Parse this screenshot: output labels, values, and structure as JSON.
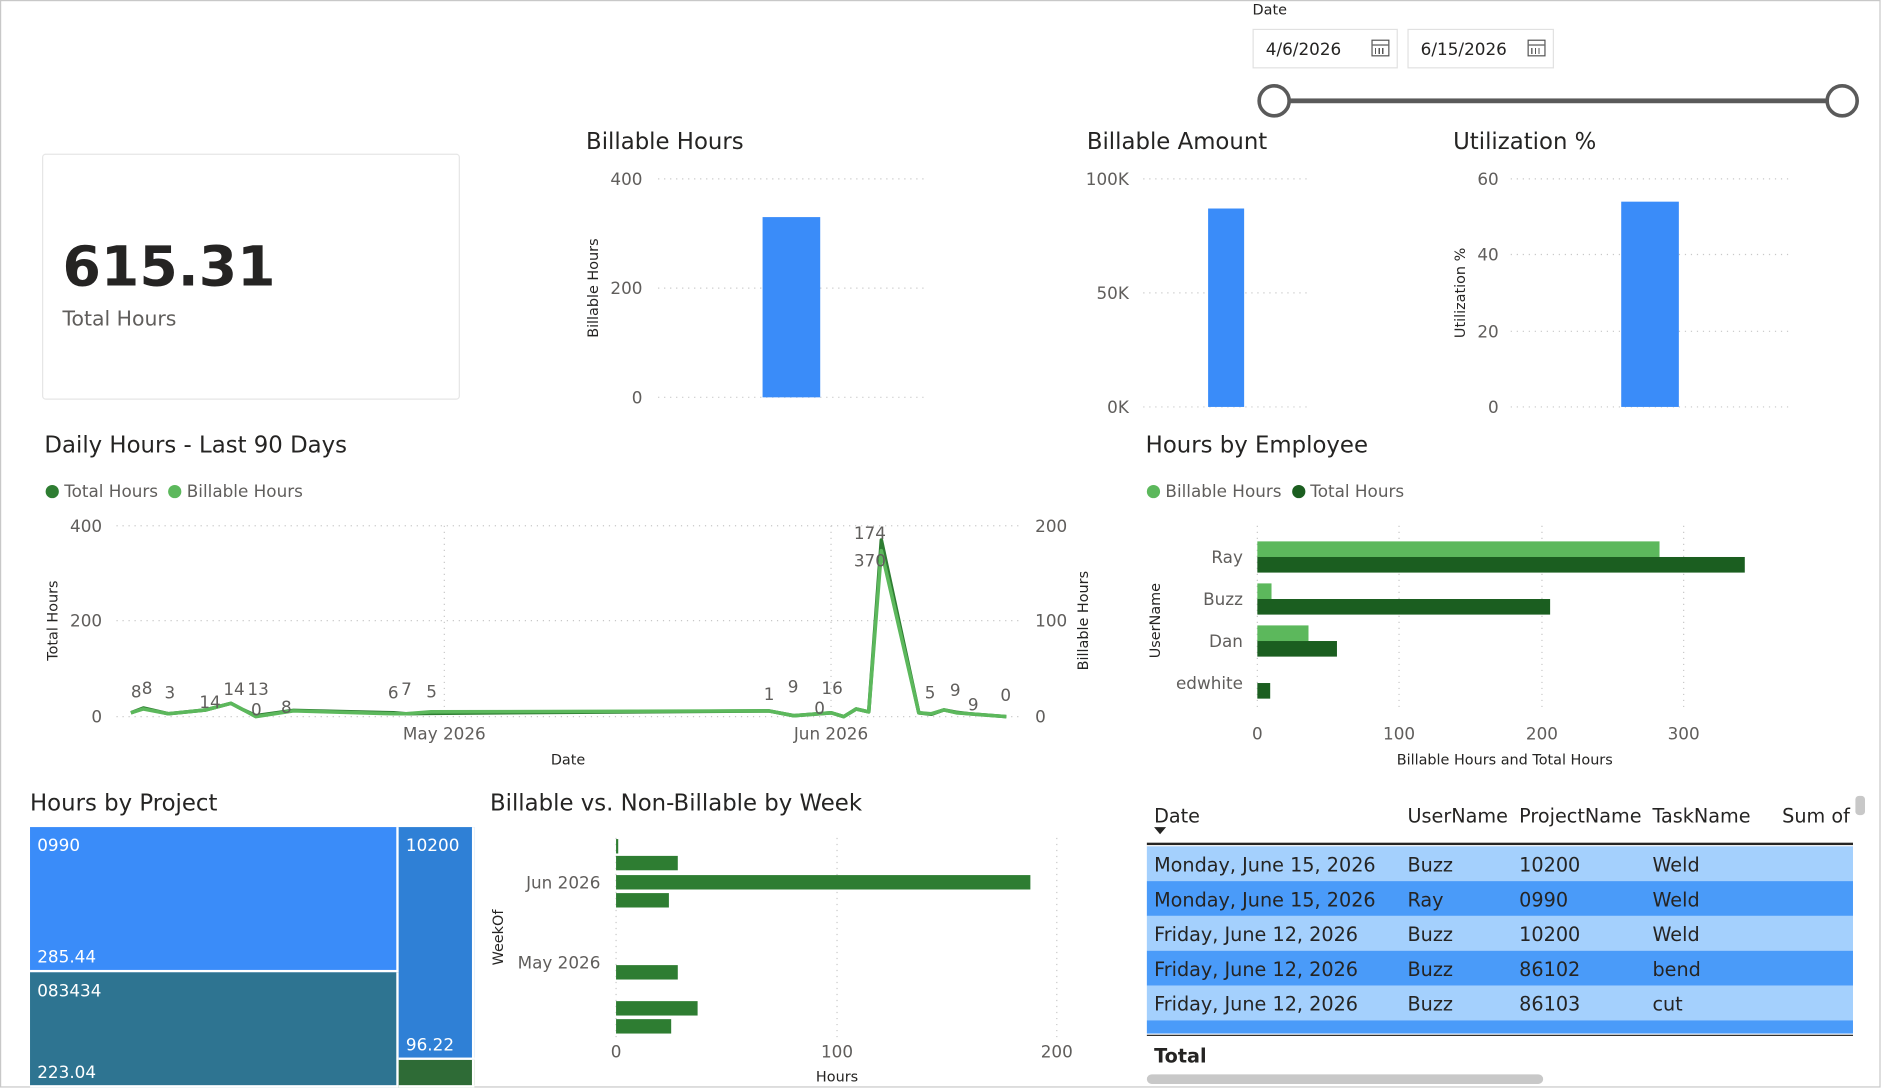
{
  "date_slicer": {
    "label": "Date",
    "start": "4/6/2026",
    "end": "6/15/2026"
  },
  "kpi": {
    "value": "615.31",
    "label": "Total Hours"
  },
  "billable_hours_chart": {
    "title": "Billable Hours",
    "ylabel": "Billable Hours",
    "ticks": [
      "400",
      "200",
      "0"
    ]
  },
  "billable_amount_chart": {
    "title": "Billable Amount",
    "ticks": [
      "100K",
      "50K",
      "0K"
    ]
  },
  "utilization_chart": {
    "title": "Utilization %",
    "ylabel": "Utilization %",
    "ticks": [
      "60",
      "40",
      "20",
      "0"
    ]
  },
  "daily_chart": {
    "title": "Daily Hours - Last 90 Days",
    "legend": [
      "Total Hours",
      "Billable Hours"
    ],
    "ylabel_left": "Total Hours",
    "ylabel_right": "Billable Hours",
    "xlabel": "Date",
    "left_ticks": [
      "400",
      "200",
      "0"
    ],
    "right_ticks": [
      "200",
      "100",
      "0"
    ],
    "x_ticks": [
      "May 2026",
      "Jun 2026"
    ],
    "data_labels": [
      "8",
      "8",
      "3",
      "14",
      "14",
      "0",
      "13",
      "8",
      "6",
      "7",
      "5",
      "1",
      "9",
      "0",
      "16",
      "174",
      "370",
      "5",
      "9",
      "9",
      "0"
    ]
  },
  "employee_chart": {
    "title": "Hours by Employee",
    "legend": [
      "Billable Hours",
      "Total Hours"
    ],
    "ylabel": "UserName",
    "xlabel": "Billable Hours and Total Hours",
    "x_ticks": [
      "0",
      "100",
      "200",
      "300"
    ]
  },
  "project_treemap": {
    "title": "Hours by Project",
    "tiles": [
      {
        "name": "0990",
        "value": "285.44"
      },
      {
        "name": "083434",
        "value": "223.04"
      },
      {
        "name": "10200",
        "value": "96.22"
      }
    ]
  },
  "week_chart": {
    "title": "Billable vs. Non-Billable by Week",
    "ylabel": "WeekOf",
    "xlabel": "Hours",
    "y_ticks": [
      "Jun 2026",
      "May 2026"
    ],
    "x_ticks": [
      "0",
      "100",
      "200"
    ]
  },
  "detail_table": {
    "headers": [
      "Date",
      "UserName",
      "ProjectName",
      "TaskName",
      "Sum of"
    ],
    "rows": [
      [
        "Monday, June 15, 2026",
        "Buzz",
        "10200",
        "Weld"
      ],
      [
        "Monday, June 15, 2026",
        "Ray",
        "0990",
        "Weld"
      ],
      [
        "Friday, June 12, 2026",
        "Buzz",
        "10200",
        "Weld"
      ],
      [
        "Friday, June 12, 2026",
        "Buzz",
        "86102",
        "bend"
      ],
      [
        "Friday, June 12, 2026",
        "Buzz",
        "86103",
        "cut"
      ]
    ],
    "total_label": "Total"
  },
  "chart_data": [
    {
      "type": "bar",
      "title": "Billable Hours",
      "ylabel": "Billable Hours",
      "categories": [
        ""
      ],
      "values": [
        330
      ],
      "ylim": [
        0,
        400
      ]
    },
    {
      "type": "bar",
      "title": "Billable Amount",
      "categories": [
        ""
      ],
      "values": [
        87000
      ],
      "ylim": [
        0,
        100000
      ]
    },
    {
      "type": "bar",
      "title": "Utilization %",
      "ylabel": "Utilization %",
      "categories": [
        ""
      ],
      "values": [
        54
      ],
      "ylim": [
        0,
        60
      ]
    },
    {
      "type": "line",
      "title": "Daily Hours - Last 90 Days",
      "xlabel": "Date",
      "series": [
        {
          "name": "Total Hours",
          "x": [
            "2026-04-06",
            "2026-04-07",
            "2026-04-09",
            "2026-04-12",
            "2026-04-14",
            "2026-04-15",
            "2026-04-16",
            "2026-04-19",
            "2026-04-27",
            "2026-04-28",
            "2026-04-30",
            "2026-05-27",
            "2026-05-29",
            "2026-06-01",
            "2026-06-02",
            "2026-06-03",
            "2026-06-04",
            "2026-06-05",
            "2026-06-08",
            "2026-06-09",
            "2026-06-10",
            "2026-06-11",
            "2026-06-12",
            "2026-06-15"
          ],
          "values": [
            8,
            18,
            6,
            14,
            28,
            14,
            2,
            13,
            8,
            6,
            7,
            12,
            2,
            8,
            0,
            16,
            10,
            370,
            8,
            5,
            14,
            9,
            6,
            0
          ]
        },
        {
          "name": "Billable Hours",
          "x": [
            "2026-04-06",
            "2026-04-07",
            "2026-04-09",
            "2026-04-12",
            "2026-04-14",
            "2026-04-15",
            "2026-04-16",
            "2026-04-19",
            "2026-04-27",
            "2026-04-28",
            "2026-04-30",
            "2026-05-27",
            "2026-05-29",
            "2026-06-01",
            "2026-06-02",
            "2026-06-03",
            "2026-06-04",
            "2026-06-05",
            "2026-06-08",
            "2026-06-09",
            "2026-06-10",
            "2026-06-11",
            "2026-06-12",
            "2026-06-15"
          ],
          "values": [
            4,
            8,
            3,
            7,
            14,
            7,
            0,
            6,
            3,
            3,
            5,
            6,
            1,
            4,
            0,
            8,
            5,
            174,
            4,
            3,
            7,
            4,
            3,
            0
          ]
        }
      ],
      "ylim": [
        0,
        400
      ],
      "y2lim": [
        0,
        200
      ]
    },
    {
      "type": "bar",
      "title": "Hours by Employee",
      "ylabel": "UserName",
      "xlabel": "Billable Hours and Total Hours",
      "categories": [
        "Ray",
        "Buzz",
        "Dan",
        "edwhite"
      ],
      "series": [
        {
          "name": "Billable Hours",
          "values": [
            283,
            10,
            36,
            0
          ]
        },
        {
          "name": "Total Hours",
          "values": [
            343,
            206,
            56,
            9
          ]
        }
      ],
      "xlim": [
        0,
        340
      ]
    },
    {
      "type": "bar",
      "title": "Billable vs. Non-Billable by Week",
      "ylabel": "WeekOf",
      "xlabel": "Hours",
      "categories": [
        "2026-06-15",
        "2026-06-08",
        "2026-06-01",
        "2026-05-25",
        "2026-05-18",
        "2026-05-11",
        "2026-05-04",
        "2026-04-27"
      ],
      "values": [
        1,
        28,
        188,
        24,
        0,
        28,
        37,
        25
      ],
      "xlim": [
        0,
        200
      ]
    }
  ]
}
